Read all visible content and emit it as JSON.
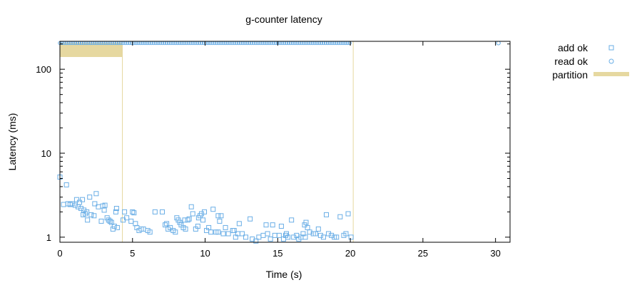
{
  "chart_data": {
    "type": "scatter",
    "title": "g-counter latency",
    "xlabel": "Time (s)",
    "ylabel": "Latency (ms)",
    "xlim": [
      0,
      31
    ],
    "ylim": [
      0.87,
      215
    ],
    "y_scale": "log",
    "x_ticks": [
      0,
      5,
      10,
      15,
      20,
      25,
      30
    ],
    "x_tick_labels": [
      "0",
      "5",
      "10",
      "15",
      "20",
      "25",
      "30"
    ],
    "y_ticks": [
      1,
      10,
      100
    ],
    "y_tick_labels": [
      "1",
      "10",
      "100"
    ],
    "grid": false,
    "legend_position": "right",
    "colors": {
      "points": "#6aaee6",
      "partition": "#e6d8a0",
      "axis": "#000000"
    },
    "legend": [
      {
        "label": "add ok",
        "marker": "square"
      },
      {
        "label": "read ok",
        "marker": "circle"
      },
      {
        "label": "partition",
        "marker": "band"
      }
    ],
    "series": [
      {
        "name": "add ok",
        "marker": "square",
        "points": [
          [
            0.0,
            5.2
          ],
          [
            0.45,
            4.2
          ],
          [
            0.25,
            2.45
          ],
          [
            0.55,
            2.5
          ],
          [
            0.7,
            2.45
          ],
          [
            0.85,
            2.5
          ],
          [
            1.05,
            2.4
          ],
          [
            1.15,
            2.8
          ],
          [
            1.25,
            2.3
          ],
          [
            1.35,
            2.6
          ],
          [
            1.45,
            2.2
          ],
          [
            1.55,
            2.8
          ],
          [
            1.65,
            2.1
          ],
          [
            1.75,
            1.9
          ],
          [
            1.6,
            1.85
          ],
          [
            1.85,
            2.0
          ],
          [
            1.9,
            1.6
          ],
          [
            2.05,
            3.0
          ],
          [
            2.15,
            1.85
          ],
          [
            2.35,
            1.8
          ],
          [
            2.5,
            3.3
          ],
          [
            2.4,
            2.5
          ],
          [
            2.65,
            2.3
          ],
          [
            2.85,
            1.55
          ],
          [
            2.95,
            2.35
          ],
          [
            3.05,
            2.1
          ],
          [
            3.1,
            2.4
          ],
          [
            3.25,
            1.7
          ],
          [
            3.35,
            1.6
          ],
          [
            3.45,
            1.55
          ],
          [
            3.55,
            1.5
          ],
          [
            3.65,
            1.25
          ],
          [
            3.75,
            1.35
          ],
          [
            3.85,
            2.0
          ],
          [
            3.9,
            2.2
          ],
          [
            3.95,
            1.3
          ],
          [
            4.35,
            1.6
          ],
          [
            4.45,
            2.0
          ],
          [
            4.6,
            1.7
          ],
          [
            4.9,
            1.55
          ],
          [
            5.0,
            2.0
          ],
          [
            5.1,
            1.95
          ],
          [
            5.2,
            1.45
          ],
          [
            5.3,
            1.3
          ],
          [
            5.45,
            1.2
          ],
          [
            5.6,
            1.25
          ],
          [
            5.75,
            1.25
          ],
          [
            6.05,
            1.2
          ],
          [
            6.2,
            1.15
          ],
          [
            6.55,
            2.0
          ],
          [
            7.05,
            2.0
          ],
          [
            7.25,
            1.4
          ],
          [
            7.35,
            1.45
          ],
          [
            7.6,
            1.3
          ],
          [
            7.8,
            1.2
          ],
          [
            7.95,
            1.15
          ],
          [
            8.05,
            1.7
          ],
          [
            8.15,
            1.6
          ],
          [
            8.25,
            1.5
          ],
          [
            8.35,
            1.4
          ],
          [
            8.5,
            1.3
          ],
          [
            8.65,
            1.25
          ],
          [
            8.8,
            1.6
          ],
          [
            8.9,
            1.65
          ],
          [
            9.05,
            2.3
          ],
          [
            9.15,
            1.9
          ],
          [
            9.35,
            1.25
          ],
          [
            9.5,
            1.35
          ],
          [
            9.65,
            1.8
          ],
          [
            9.75,
            1.9
          ],
          [
            9.85,
            1.6
          ],
          [
            9.95,
            2.0
          ],
          [
            10.1,
            1.2
          ],
          [
            10.25,
            1.3
          ],
          [
            10.4,
            1.15
          ],
          [
            10.55,
            2.15
          ],
          [
            10.75,
            1.15
          ],
          [
            10.9,
            1.15
          ],
          [
            11.0,
            1.55
          ],
          [
            11.1,
            1.8
          ],
          [
            11.25,
            1.1
          ],
          [
            11.4,
            1.3
          ],
          [
            11.6,
            1.1
          ],
          [
            11.9,
            1.2
          ],
          [
            12.1,
            1.0
          ],
          [
            12.25,
            1.1
          ],
          [
            12.35,
            1.45
          ],
          [
            12.55,
            1.1
          ],
          [
            12.8,
            1.0
          ],
          [
            13.1,
            1.65
          ],
          [
            13.25,
            0.95
          ],
          [
            13.5,
            0.9
          ],
          [
            13.7,
            1.0
          ],
          [
            14.0,
            1.05
          ],
          [
            14.3,
            1.1
          ],
          [
            14.5,
            0.95
          ],
          [
            14.65,
            1.4
          ],
          [
            14.8,
            1.05
          ],
          [
            15.1,
            1.05
          ],
          [
            15.25,
            1.35
          ],
          [
            15.4,
            0.95
          ],
          [
            15.55,
            1.05
          ],
          [
            15.7,
            1.0
          ],
          [
            15.95,
            1.6
          ],
          [
            16.1,
            1.0
          ],
          [
            16.3,
            1.05
          ],
          [
            16.45,
            0.95
          ],
          [
            16.6,
            1.0
          ],
          [
            16.75,
            1.1
          ],
          [
            16.9,
            1.0
          ],
          [
            17.05,
            1.3
          ],
          [
            17.2,
            1.15
          ],
          [
            17.45,
            1.1
          ],
          [
            17.6,
            1.1
          ],
          [
            17.8,
            1.25
          ],
          [
            17.95,
            1.05
          ],
          [
            18.15,
            1.0
          ],
          [
            18.35,
            1.85
          ],
          [
            18.5,
            1.1
          ],
          [
            18.7,
            1.05
          ],
          [
            18.9,
            1.0
          ],
          [
            19.05,
            1.0
          ],
          [
            19.3,
            1.75
          ],
          [
            19.55,
            1.05
          ],
          [
            19.7,
            1.1
          ],
          [
            19.85,
            1.9
          ],
          [
            20.05,
            1.0
          ],
          [
            16.95,
            1.5
          ],
          [
            16.85,
            1.4
          ],
          [
            15.6,
            1.1
          ],
          [
            14.2,
            1.4
          ],
          [
            12.0,
            1.2
          ],
          [
            10.9,
            1.8
          ],
          [
            9.55,
            1.7
          ],
          [
            8.6,
            1.6
          ],
          [
            7.45,
            1.25
          ]
        ]
      },
      {
        "name": "read ok",
        "marker": "circle",
        "points": [
          [
            30.2,
            205
          ]
        ]
      }
    ],
    "partitions": [
      {
        "start": 0.0,
        "end": 4.3,
        "label": "partition"
      },
      {
        "start": 4.3,
        "end": 20.2,
        "label": "partition"
      }
    ]
  }
}
